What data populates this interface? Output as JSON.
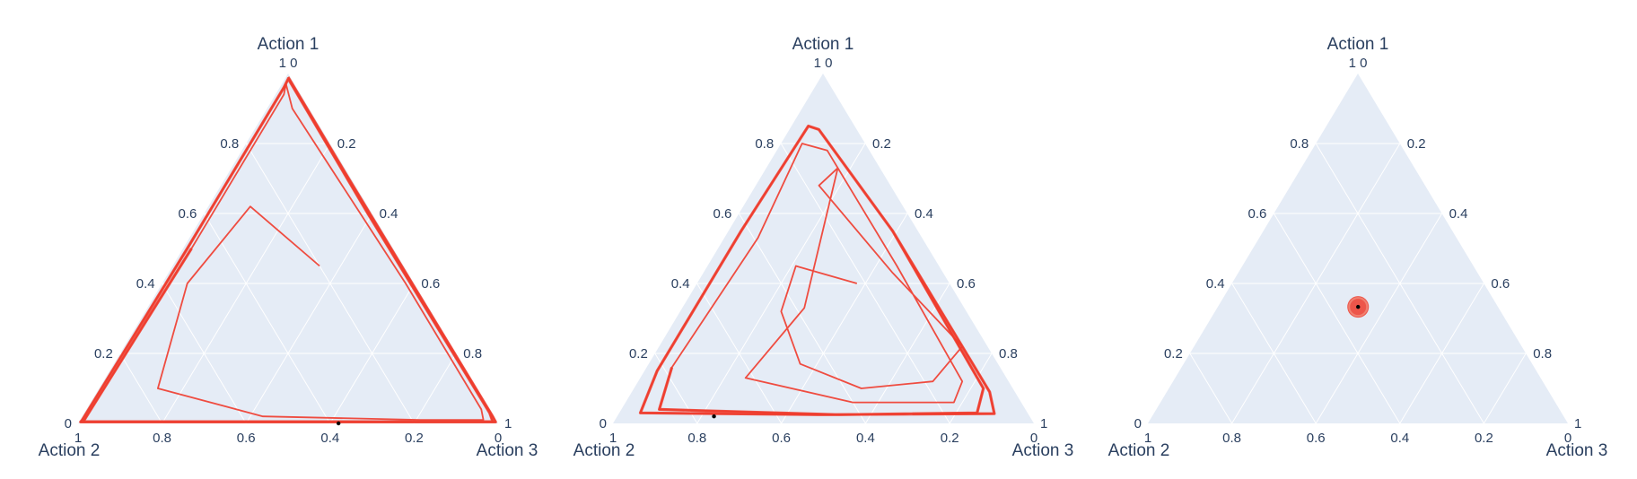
{
  "colors": {
    "background": "#ffffff",
    "plot_bg": "#e5ecf6",
    "grid": "#ffffff",
    "text": "#2a3f5f",
    "trajectory": "#ef3b2c",
    "marker": "#000000"
  },
  "chart_data": [
    {
      "type": "ternary",
      "axes": {
        "a": "Action 1",
        "b": "Action 2",
        "c": "Action 3"
      },
      "ticks": [
        "0.2",
        "0.4",
        "0.6",
        "0.8",
        "1",
        "0"
      ],
      "grid": true,
      "trajectory": {
        "description_points_abc": [
          [
            0.45,
            0.2,
            0.35
          ],
          [
            0.62,
            0.28,
            0.1
          ],
          [
            0.4,
            0.54,
            0.06
          ],
          [
            0.1,
            0.76,
            0.14
          ],
          [
            0.02,
            0.55,
            0.43
          ],
          [
            0.01,
            0.18,
            0.81
          ],
          [
            0.01,
            0.03,
            0.96
          ],
          [
            0.04,
            0.02,
            0.94
          ],
          [
            0.4,
            0.02,
            0.58
          ],
          [
            0.9,
            0.04,
            0.06
          ],
          [
            0.97,
            0.02,
            0.01
          ],
          [
            0.94,
            0.04,
            0.02
          ],
          [
            0.5,
            0.48,
            0.02
          ],
          [
            0.02,
            0.97,
            0.01
          ],
          [
            0.005,
            0.985,
            0.01
          ],
          [
            0.005,
            0.01,
            0.985
          ],
          [
            0.03,
            0.005,
            0.965
          ],
          [
            0.6,
            0.01,
            0.39
          ],
          [
            0.985,
            0.007,
            0.008
          ],
          [
            0.96,
            0.03,
            0.01
          ],
          [
            0.5,
            0.49,
            0.01
          ],
          [
            0.01,
            0.985,
            0.005
          ],
          [
            0.004,
            0.992,
            0.004
          ],
          [
            0.004,
            0.004,
            0.992
          ],
          [
            0.02,
            0.003,
            0.977
          ],
          [
            0.7,
            0.006,
            0.294
          ],
          [
            0.99,
            0.005,
            0.005
          ]
        ],
        "marker_abc": [
          0.0,
          0.38,
          0.62
        ]
      }
    },
    {
      "type": "ternary",
      "axes": {
        "a": "Action 1",
        "b": "Action 2",
        "c": "Action 3"
      },
      "ticks": [
        "0.2",
        "0.4",
        "0.6",
        "0.8",
        "1",
        "0"
      ],
      "grid": true,
      "trajectory": {
        "description_points_abc": [
          [
            0.4,
            0.22,
            0.38
          ],
          [
            0.45,
            0.34,
            0.21
          ],
          [
            0.32,
            0.44,
            0.24
          ],
          [
            0.17,
            0.47,
            0.36
          ],
          [
            0.1,
            0.36,
            0.54
          ],
          [
            0.12,
            0.18,
            0.7
          ],
          [
            0.22,
            0.06,
            0.72
          ],
          [
            0.43,
            0.12,
            0.45
          ],
          [
            0.68,
            0.17,
            0.15
          ],
          [
            0.73,
            0.1,
            0.17
          ],
          [
            0.33,
            0.38,
            0.29
          ],
          [
            0.13,
            0.62,
            0.25
          ],
          [
            0.06,
            0.4,
            0.54
          ],
          [
            0.06,
            0.16,
            0.78
          ],
          [
            0.12,
            0.11,
            0.77
          ],
          [
            0.45,
            0.1,
            0.45
          ],
          [
            0.78,
            0.1,
            0.12
          ],
          [
            0.8,
            0.15,
            0.05
          ],
          [
            0.53,
            0.39,
            0.08
          ],
          [
            0.16,
            0.78,
            0.06
          ],
          [
            0.04,
            0.87,
            0.09
          ],
          [
            0.025,
            0.45,
            0.525
          ],
          [
            0.03,
            0.12,
            0.85
          ],
          [
            0.1,
            0.07,
            0.83
          ],
          [
            0.55,
            0.06,
            0.39
          ],
          [
            0.84,
            0.09,
            0.07
          ],
          [
            0.85,
            0.11,
            0.04
          ],
          [
            0.55,
            0.42,
            0.03
          ],
          [
            0.15,
            0.82,
            0.03
          ],
          [
            0.03,
            0.92,
            0.05
          ],
          [
            0.025,
            0.5,
            0.475
          ],
          [
            0.028,
            0.08,
            0.892
          ],
          [
            0.09,
            0.06,
            0.85
          ],
          [
            0.55,
            0.06,
            0.39
          ],
          [
            0.84,
            0.09,
            0.07
          ],
          [
            0.85,
            0.11,
            0.04
          ],
          [
            0.55,
            0.42,
            0.03
          ],
          [
            0.15,
            0.82,
            0.03
          ],
          [
            0.03,
            0.92,
            0.05
          ],
          [
            0.025,
            0.5,
            0.475
          ],
          [
            0.028,
            0.08,
            0.892
          ],
          [
            0.09,
            0.06,
            0.85
          ],
          [
            0.55,
            0.06,
            0.39
          ],
          [
            0.84,
            0.09,
            0.07
          ]
        ],
        "marker_abc": [
          0.02,
          0.75,
          0.23
        ]
      }
    },
    {
      "type": "ternary",
      "axes": {
        "a": "Action 1",
        "b": "Action 2",
        "c": "Action 3"
      },
      "ticks": [
        "0.2",
        "0.4",
        "0.6",
        "0.8",
        "1",
        "0"
      ],
      "grid": true,
      "trajectory": {
        "spiral_center_abc": [
          0.333,
          0.333,
          0.334
        ],
        "spiral_radius": 0.02,
        "marker_abc": [
          0.333,
          0.333,
          0.334
        ]
      }
    }
  ]
}
